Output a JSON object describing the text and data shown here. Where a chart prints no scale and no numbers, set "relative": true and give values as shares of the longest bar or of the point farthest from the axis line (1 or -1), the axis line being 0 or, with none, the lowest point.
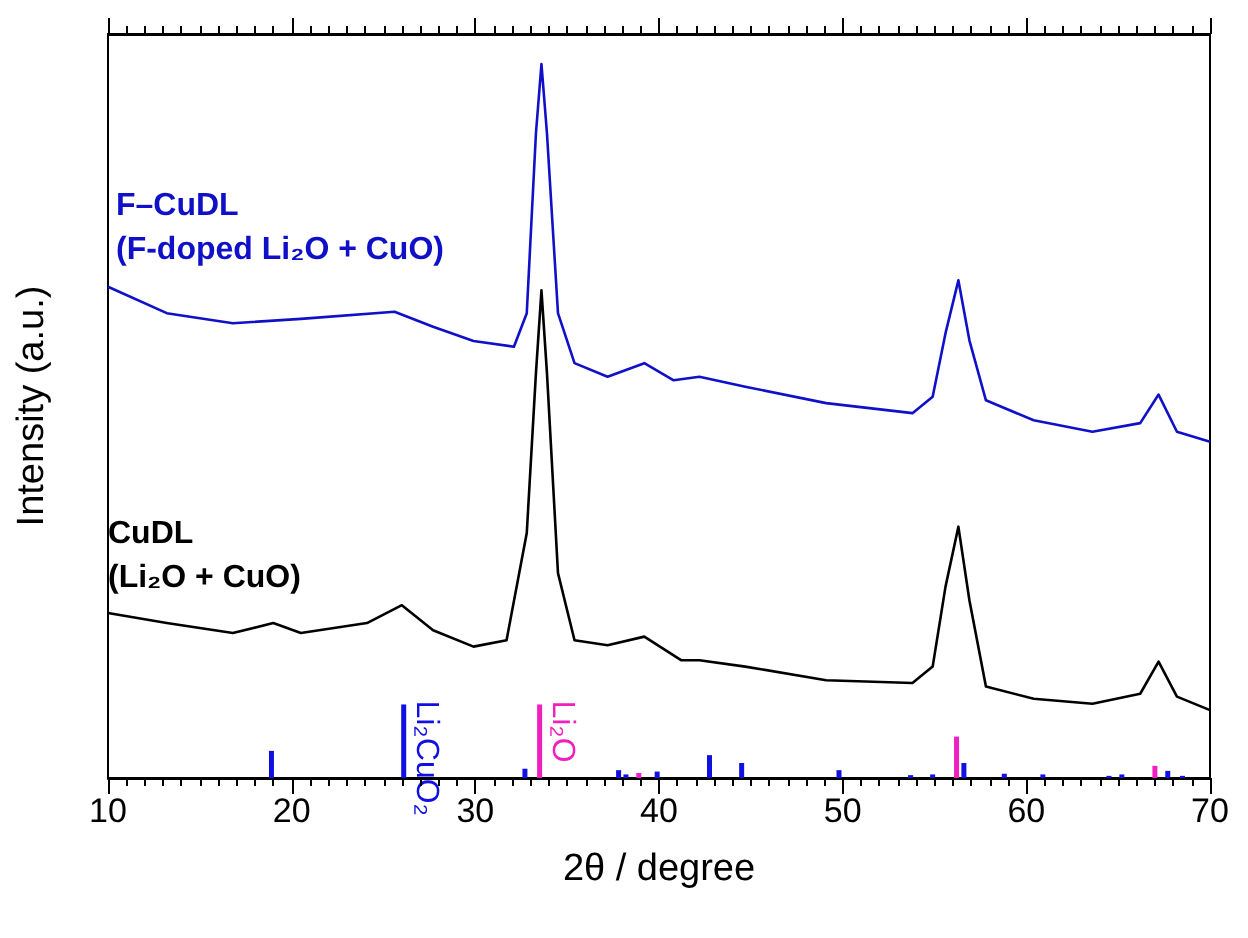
{
  "chart_data": {
    "type": "line",
    "relative": true,
    "xlabel": "2θ / degree",
    "ylabel": "Intensity (a.u.)",
    "xlim": [
      10,
      70
    ],
    "xticks": [
      10,
      20,
      30,
      40,
      50,
      60,
      70
    ],
    "series": [
      {
        "name": "F–CuDL\n(F-doped Li₂O + CuO)",
        "color": "#1010c8",
        "x": [
          10,
          13.2,
          16.8,
          20.5,
          25.6,
          27.7,
          29.9,
          32.1,
          32.8,
          33.3,
          33.6,
          33.9,
          34.5,
          35.4,
          37.2,
          39.2,
          40.8,
          42.2,
          44.7,
          49.1,
          53.8,
          54.9,
          55.6,
          56.3,
          56.9,
          57.8,
          60.4,
          63.6,
          66.2,
          67.2,
          68.2,
          70
        ],
        "values": [
          0.688,
          0.651,
          0.637,
          0.643,
          0.653,
          0.632,
          0.612,
          0.604,
          0.651,
          0.903,
          1.0,
          0.903,
          0.651,
          0.581,
          0.562,
          0.581,
          0.557,
          0.562,
          0.548,
          0.525,
          0.511,
          0.534,
          0.623,
          0.697,
          0.613,
          0.529,
          0.501,
          0.485,
          0.497,
          0.537,
          0.485,
          0.471
        ]
      },
      {
        "name": "CuDL\n(Li₂O + CuO)",
        "color": "#000000",
        "x": [
          10,
          13.2,
          16.8,
          19.0,
          20.5,
          24.1,
          26.0,
          27.7,
          29.9,
          31.7,
          32.8,
          33.3,
          33.6,
          33.9,
          34.5,
          35.4,
          37.2,
          39.2,
          41.2,
          42.2,
          44.7,
          49.1,
          53.8,
          54.9,
          55.6,
          56.3,
          56.9,
          57.8,
          60.4,
          63.6,
          66.2,
          67.2,
          68.2,
          70
        ],
        "values": [
          0.231,
          0.217,
          0.203,
          0.217,
          0.203,
          0.217,
          0.242,
          0.207,
          0.184,
          0.193,
          0.343,
          0.567,
          0.683,
          0.567,
          0.287,
          0.193,
          0.186,
          0.198,
          0.165,
          0.165,
          0.156,
          0.137,
          0.133,
          0.156,
          0.268,
          0.352,
          0.249,
          0.128,
          0.111,
          0.104,
          0.118,
          0.163,
          0.114,
          0.095
        ]
      },
      {
        "name": "Li₂CuO₂",
        "type": "bar",
        "color": "#1010e0",
        "x": [
          18.9,
          26.1,
          32.7,
          37.8,
          38.2,
          39.9,
          42.75,
          44.5,
          49.8,
          53.7,
          54.9,
          56.6,
          58.8,
          60.9,
          64.5,
          65.2,
          67.7,
          68.5
        ],
        "values": [
          0.038,
          0.103,
          0.013,
          0.011,
          0.005,
          0.009,
          0.032,
          0.021,
          0.011,
          0.004,
          0.005,
          0.021,
          0.006,
          0.005,
          0.003,
          0.005,
          0.01,
          0.003
        ]
      },
      {
        "name": "Li₂O",
        "type": "bar",
        "color": "#f020c0",
        "x": [
          33.5,
          38.9,
          56.2,
          67.0
        ],
        "values": [
          0.103,
          0.007,
          0.058,
          0.017
        ]
      }
    ]
  }
}
